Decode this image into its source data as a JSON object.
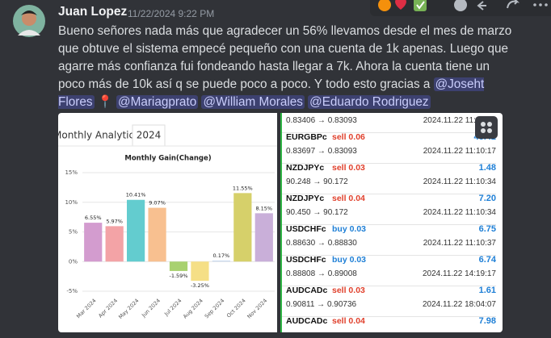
{
  "message": {
    "author": "Juan Lopez",
    "timestamp": "11/22/2024 9:22 PM",
    "text": "Bueno señores nada más que agradecer un 56% llevamos desde el mes de marzo que obtuve el sistema empecé pequeño con una cuenta de 1k apenas. Luego que agarre más confianza fui fondeando hasta llegar a 7k. Ahora la cuenta tiene un poco más de 10k así q se puede poco a poco. Y todo esto gracias a",
    "mentions": [
      "@Joseht Flores",
      "@Mariagprato",
      "@William Morales",
      "@Eduardo Rodriguez"
    ],
    "emoji": "📍"
  },
  "chart_data": {
    "type": "bar",
    "header": "Monthly Analytics",
    "tab": "2024",
    "title": "Monthly Gain(Change)",
    "categories": [
      "Mar 2024",
      "Apr 2024",
      "May 2024",
      "Jun 2024",
      "Jul 2024",
      "Aug 2024",
      "Sep 2024",
      "Oct 2024",
      "Nov 2024"
    ],
    "values": [
      6.55,
      5.97,
      10.41,
      9.07,
      -1.59,
      -3.25,
      0.17,
      11.55,
      8.15
    ],
    "value_labels": [
      "6.55%",
      "5.97%",
      "10.41%",
      "9.07%",
      "-1.59%",
      "-3.25%",
      "0.17%",
      "11.55%",
      "8.15%"
    ],
    "colors": [
      "#d39ccf",
      "#f3a3a6",
      "#63cccf",
      "#f8c090",
      "#a8d170",
      "#f5df86",
      "#c9d9ee",
      "#d6d06a",
      "#c9afd9"
    ],
    "ylim": [
      -5,
      15
    ],
    "yticks": [
      {
        "value": -5,
        "label": "-5%"
      },
      {
        "value": 0,
        "label": "0%"
      },
      {
        "value": 5,
        "label": "5%"
      },
      {
        "value": 10,
        "label": "10%"
      },
      {
        "value": 15,
        "label": "15%"
      }
    ],
    "grid": true
  },
  "trades": [
    {
      "prices": "0.83406 → 0.83093",
      "time": "2024.11.22 11:10:17"
    },
    {
      "symbol": "EURGBPc",
      "side": "sell 0.06",
      "profit": "43.42",
      "prices": "0.83697 → 0.83093",
      "time": "2024.11.22 11:10:17"
    },
    {
      "symbol": "NZDJPYc",
      "side": "sell 0.03",
      "profit": "1.48",
      "prices": "90.248 → 90.172",
      "time": "2024.11.22 11:10:34"
    },
    {
      "symbol": "NZDJPYc",
      "side": "sell 0.04",
      "profit": "7.20",
      "prices": "90.450 → 90.172",
      "time": "2024.11.22 11:10:34"
    },
    {
      "symbol": "USDCHFc",
      "side": "buy 0.03",
      "profit": "6.75",
      "prices": "0.88630 → 0.88830",
      "time": "2024.11.22 11:10:37"
    },
    {
      "symbol": "USDCHFc",
      "side": "buy 0.03",
      "profit": "6.74",
      "prices": "0.88808 → 0.89008",
      "time": "2024.11.22 14:19:17"
    },
    {
      "symbol": "AUDCADc",
      "side": "sell 0.03",
      "profit": "1.61",
      "prices": "0.90811 → 0.90736",
      "time": "2024.11.22 18:04:07"
    },
    {
      "symbol": "AUDCADc",
      "side": "sell 0.04",
      "profit": "7.98"
    }
  ]
}
